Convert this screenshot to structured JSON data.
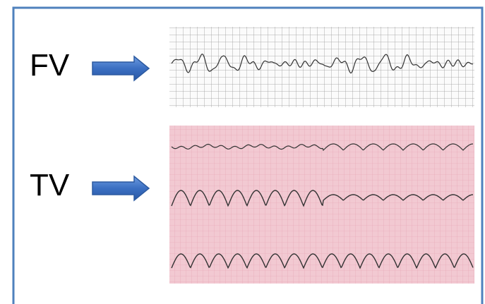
{
  "labels": {
    "fv": "FV",
    "tv": "TV"
  }
}
